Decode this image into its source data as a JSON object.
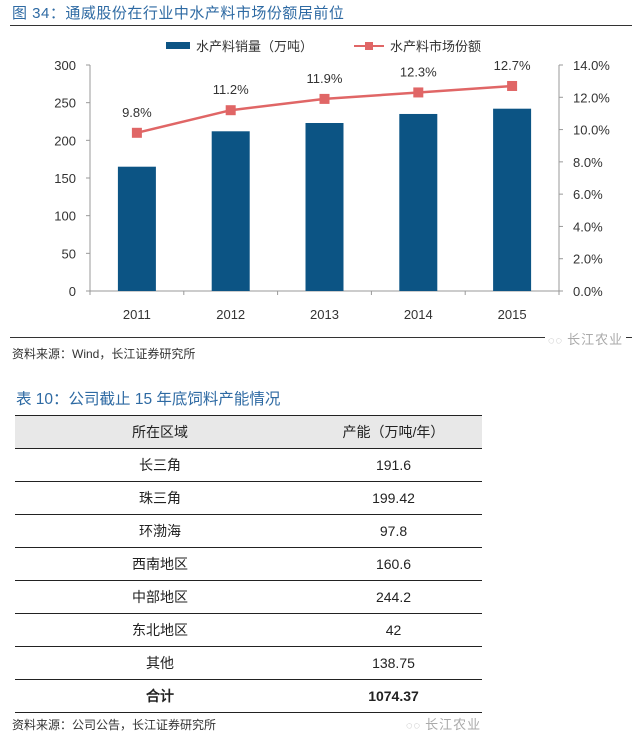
{
  "figure": {
    "title": "图 34：通威股份在行业中水产料市场份额居前位",
    "source": "资料来源：Wind，长江证券研究所",
    "watermark": "长江农业"
  },
  "chart_data": {
    "type": "bar+line",
    "title": "图 34：通威股份在行业中水产料市场份额居前位",
    "categories": [
      "2011",
      "2012",
      "2013",
      "2014",
      "2015"
    ],
    "series": [
      {
        "name": "水产料销量（万吨）",
        "type": "bar",
        "axis": "left",
        "values": [
          165,
          212,
          223,
          235,
          242
        ],
        "color": "#0c5484"
      },
      {
        "name": "水产料市场份额",
        "type": "line",
        "axis": "right",
        "values": [
          9.8,
          11.2,
          11.9,
          12.3,
          12.7
        ],
        "labels": [
          "9.8%",
          "11.2%",
          "11.9%",
          "12.3%",
          "12.7%"
        ],
        "color": "#e06666"
      }
    ],
    "y_left": {
      "ylim": [
        0,
        300
      ],
      "ticks": [
        "0",
        "50",
        "100",
        "150",
        "200",
        "250",
        "300"
      ]
    },
    "y_right": {
      "ylim": [
        0,
        14
      ],
      "ticks": [
        "0.0%",
        "2.0%",
        "4.0%",
        "6.0%",
        "8.0%",
        "10.0%",
        "12.0%",
        "14.0%"
      ]
    },
    "legend": "top-center",
    "grid": false
  },
  "table": {
    "title": "表 10：公司截止 15 年底饲料产能情况",
    "headers": [
      "所在区域",
      "产能（万吨/年）"
    ],
    "rows": [
      [
        "长三角",
        "191.6"
      ],
      [
        "珠三角",
        "199.42"
      ],
      [
        "环渤海",
        "97.8"
      ],
      [
        "西南地区",
        "160.6"
      ],
      [
        "中部地区",
        "244.2"
      ],
      [
        "东北地区",
        "42"
      ],
      [
        "其他",
        "138.75"
      ]
    ],
    "total": [
      "合计",
      "1074.37"
    ],
    "source": "资料来源：公司公告，长江证券研究所",
    "watermark": "长江农业"
  }
}
